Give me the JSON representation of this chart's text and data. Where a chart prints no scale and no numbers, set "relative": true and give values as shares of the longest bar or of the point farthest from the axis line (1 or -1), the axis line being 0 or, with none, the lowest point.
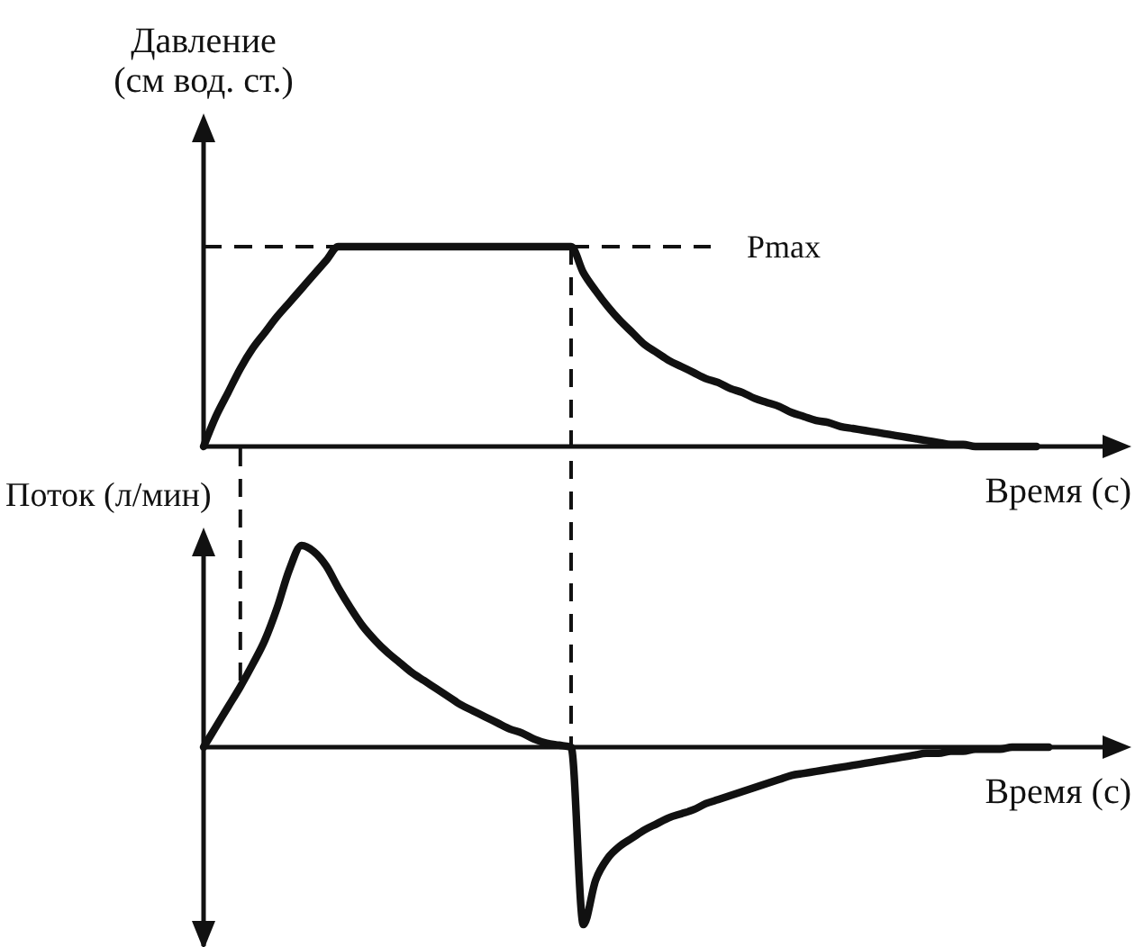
{
  "chart_data": [
    {
      "type": "line",
      "ylabel": "Давление\n(см вод. ст.)",
      "xlabel": "Время (с)",
      "relative": true,
      "color": "#111111",
      "categories": [
        null,
        null,
        null,
        null,
        null,
        null,
        null,
        null,
        null,
        null,
        null,
        null,
        null,
        null,
        null,
        null,
        null,
        null,
        null,
        null,
        null,
        null,
        null,
        null,
        null,
        null,
        null,
        null,
        null,
        null,
        null,
        null,
        null,
        null,
        null,
        null,
        null,
        null,
        null,
        null,
        null,
        null,
        null,
        null,
        null,
        null,
        null,
        null,
        null,
        null,
        null,
        null,
        null,
        null,
        null,
        null,
        null,
        null,
        null,
        null,
        null,
        null,
        null,
        null,
        null,
        null,
        null,
        null,
        null,
        null
      ],
      "values": [
        0,
        0.15,
        0.27,
        0.39,
        0.49,
        0.57,
        0.65,
        0.72,
        0.79,
        0.86,
        0.93,
        1,
        1,
        1,
        1,
        1,
        1,
        1,
        1,
        1,
        1,
        1,
        1,
        1,
        1,
        1,
        1,
        1,
        1,
        1,
        1,
        0.87,
        0.78,
        0.7,
        0.63,
        0.57,
        0.51,
        0.47,
        0.43,
        0.4,
        0.37,
        0.34,
        0.32,
        0.29,
        0.27,
        0.24,
        0.22,
        0.2,
        0.17,
        0.15,
        0.13,
        0.12,
        0.1,
        0.09,
        0.08,
        0.07,
        0.06,
        0.05,
        0.04,
        0.03,
        0.02,
        0.01,
        0.01,
        0,
        0,
        0,
        0,
        0,
        0,
        null
      ],
      "ref_lines": [
        {
          "axis": "y",
          "value": 1,
          "label": "Pmax",
          "line_style": "dashed"
        }
      ]
    },
    {
      "type": "line",
      "ylabel": "Поток (л/мин)",
      "xlabel": "Время (с)",
      "relative": true,
      "color": "#111111",
      "categories": [
        null,
        null,
        null,
        null,
        null,
        null,
        null,
        null,
        null,
        null,
        null,
        null,
        null,
        null,
        null,
        null,
        null,
        null,
        null,
        null,
        null,
        null,
        null,
        null,
        null,
        null,
        null,
        null,
        null,
        null,
        null,
        null,
        null,
        null,
        null,
        null,
        null,
        null,
        null,
        null,
        null,
        null,
        null,
        null,
        null,
        null,
        null,
        null,
        null,
        null,
        null,
        null,
        null,
        null,
        null,
        null,
        null,
        null,
        null,
        null,
        null,
        null,
        null,
        null,
        null,
        null,
        null,
        null,
        null,
        null
      ],
      "values": [
        0,
        0.1,
        0.2,
        0.3,
        0.41,
        0.53,
        0.69,
        0.88,
        1,
        0.97,
        0.9,
        0.79,
        0.69,
        0.6,
        0.53,
        0.47,
        0.42,
        0.37,
        0.33,
        0.29,
        0.25,
        0.21,
        0.18,
        0.15,
        0.12,
        0.09,
        0.07,
        0.04,
        0.02,
        0.01,
        0,
        -0.88,
        -0.66,
        -0.55,
        -0.49,
        -0.45,
        -0.41,
        -0.38,
        -0.35,
        -0.33,
        -0.31,
        -0.28,
        -0.26,
        -0.24,
        -0.22,
        -0.2,
        -0.18,
        -0.16,
        -0.14,
        -0.13,
        -0.12,
        -0.11,
        -0.1,
        -0.09,
        -0.08,
        -0.07,
        -0.06,
        -0.05,
        -0.04,
        -0.03,
        -0.03,
        -0.02,
        -0.02,
        -0.01,
        -0.01,
        -0.01,
        0,
        0,
        0,
        0
      ]
    }
  ]
}
